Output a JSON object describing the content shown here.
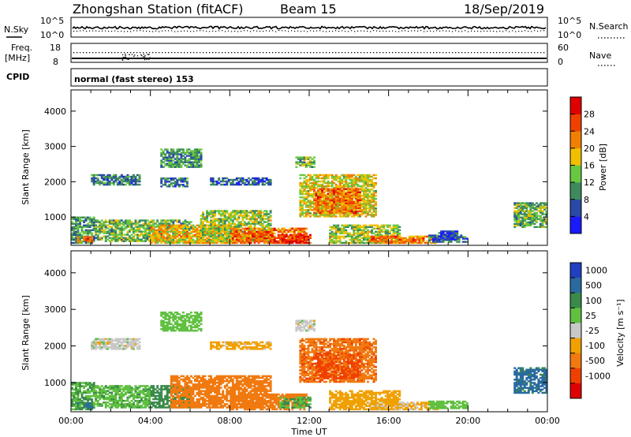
{
  "header": {
    "station": "Zhongshan Station (fitACF)",
    "beam": "Beam 15",
    "date": "18/Sep/2019"
  },
  "strip": {
    "nsky_label": "N.Sky",
    "nsky_top": "10^5",
    "nsky_bottom": "10^0",
    "nsearch_label": "N.Search",
    "nsearch_top": "10^5",
    "nsearch_bottom": "10^0",
    "freq_label": "Freq.",
    "freq_unit": "[MHz]",
    "freq_top": "18",
    "freq_bottom": "8",
    "nave_label": "Nave",
    "nave_top": "60",
    "nave_bottom": "0",
    "cpid_label": "CPID",
    "cpid_text": "normal (fast stereo) 153"
  },
  "axes": {
    "ylabel": "Slant Range [km]",
    "xlabel": "Time UT",
    "yticks": [
      "1000",
      "2000",
      "3000",
      "4000"
    ],
    "xticks": [
      "00:00",
      "04:00",
      "08:00",
      "12:00",
      "16:00",
      "20:00",
      "00:00"
    ]
  },
  "colorbars": {
    "power": {
      "label": "Power [dB]",
      "ticks": [
        "4",
        "8",
        "12",
        "16",
        "20",
        "24",
        "28"
      ],
      "colors": [
        "#1a1aff",
        "#2a4aa8",
        "#3e8a5c",
        "#68c840",
        "#f0c000",
        "#f08000",
        "#f04000",
        "#e00000"
      ]
    },
    "velocity": {
      "label": "Velocity [m s⁻¹]",
      "ticks": [
        "1000",
        "500",
        "100",
        "25",
        "-25",
        "-100",
        "-500",
        "-1000"
      ],
      "colors": [
        "#2040c0",
        "#2a6aa0",
        "#3a8a4a",
        "#60c040",
        "#c8c8c8",
        "#f0a000",
        "#f07a10",
        "#f04000",
        "#e00000"
      ]
    }
  },
  "chart_data": [
    {
      "type": "heatmap",
      "title": "Power",
      "quantity": "Power [dB]",
      "xlabel": "Time UT",
      "ylabel": "Slant Range [km]",
      "xlim": [
        0,
        24
      ],
      "ylim": [
        200,
        4600
      ],
      "color_range": [
        0,
        30
      ],
      "blobs": [
        {
          "t0": 0.0,
          "t1": 1.2,
          "r0": 250,
          "r1": 1000,
          "value": 10
        },
        {
          "t0": 0.3,
          "t1": 1.0,
          "r0": 280,
          "r1": 450,
          "value": 24
        },
        {
          "t0": 1.2,
          "t1": 6.0,
          "r0": 300,
          "r1": 900,
          "value": 12
        },
        {
          "t0": 4.0,
          "t1": 8.0,
          "r0": 250,
          "r1": 750,
          "value": 18
        },
        {
          "t0": 6.5,
          "t1": 10.0,
          "r0": 300,
          "r1": 1200,
          "value": 14
        },
        {
          "t0": 8.0,
          "t1": 11.8,
          "r0": 250,
          "r1": 700,
          "value": 22
        },
        {
          "t0": 10.0,
          "t1": 12.0,
          "r0": 250,
          "r1": 500,
          "value": 26
        },
        {
          "t0": 11.5,
          "t1": 15.3,
          "r0": 1000,
          "r1": 2200,
          "value": 16
        },
        {
          "t0": 12.2,
          "t1": 14.5,
          "r0": 1100,
          "r1": 1800,
          "value": 22
        },
        {
          "t0": 13.0,
          "t1": 16.5,
          "r0": 250,
          "r1": 750,
          "value": 14
        },
        {
          "t0": 15.0,
          "t1": 18.5,
          "r0": 250,
          "r1": 450,
          "value": 22
        },
        {
          "t0": 18.0,
          "t1": 20.0,
          "r0": 280,
          "r1": 500,
          "value": 8
        },
        {
          "t0": 18.5,
          "t1": 19.5,
          "r0": 350,
          "r1": 600,
          "value": 4
        },
        {
          "t0": 22.3,
          "t1": 24.0,
          "r0": 700,
          "r1": 1400,
          "value": 12
        },
        {
          "t0": 1.0,
          "t1": 3.5,
          "r0": 1900,
          "r1": 2200,
          "value": 8
        },
        {
          "t0": 4.5,
          "t1": 5.8,
          "r0": 1850,
          "r1": 2100,
          "value": 8
        },
        {
          "t0": 7.0,
          "t1": 10.0,
          "r0": 1900,
          "r1": 2100,
          "value": 6
        },
        {
          "t0": 11.3,
          "t1": 12.2,
          "r0": 2400,
          "r1": 2700,
          "value": 12
        },
        {
          "t0": 4.5,
          "t1": 6.5,
          "r0": 2400,
          "r1": 2900,
          "value": 10
        }
      ]
    },
    {
      "type": "heatmap",
      "title": "Velocity",
      "quantity": "Velocity [m s⁻¹]",
      "xlabel": "Time UT",
      "ylabel": "Slant Range [km]",
      "xlim": [
        0,
        24
      ],
      "ylim": [
        200,
        4600
      ],
      "color_levels": [
        1000,
        500,
        100,
        25,
        -25,
        -100,
        -500,
        -1000
      ],
      "blobs": [
        {
          "t0": 0.0,
          "t1": 1.2,
          "r0": 250,
          "r1": 1000,
          "value": 100
        },
        {
          "t0": 0.3,
          "t1": 1.0,
          "r0": 280,
          "r1": 450,
          "value": 600
        },
        {
          "t0": 1.2,
          "t1": 4.0,
          "r0": 300,
          "r1": 900,
          "value": 80
        },
        {
          "t0": 4.0,
          "t1": 6.0,
          "r0": 300,
          "r1": 900,
          "value": 300
        },
        {
          "t0": 5.0,
          "t1": 10.0,
          "r0": 300,
          "r1": 1200,
          "value": -300
        },
        {
          "t0": 8.0,
          "t1": 11.8,
          "r0": 250,
          "r1": 700,
          "value": -200
        },
        {
          "t0": 10.5,
          "t1": 12.0,
          "r0": 300,
          "r1": 600,
          "value": 100
        },
        {
          "t0": 11.5,
          "t1": 15.3,
          "r0": 1000,
          "r1": 2200,
          "value": -400
        },
        {
          "t0": 12.3,
          "t1": 14.5,
          "r0": 1100,
          "r1": 1800,
          "value": -600
        },
        {
          "t0": 13.0,
          "t1": 16.5,
          "r0": 250,
          "r1": 750,
          "value": -60
        },
        {
          "t0": 15.0,
          "t1": 18.5,
          "r0": 250,
          "r1": 450,
          "value": -40
        },
        {
          "t0": 18.0,
          "t1": 20.0,
          "r0": 280,
          "r1": 500,
          "value": 60
        },
        {
          "t0": 22.3,
          "t1": 24.0,
          "r0": 700,
          "r1": 1400,
          "value": 700
        },
        {
          "t0": 1.0,
          "t1": 3.5,
          "r0": 1900,
          "r1": 2200,
          "value": 0
        },
        {
          "t0": 7.0,
          "t1": 10.0,
          "r0": 1900,
          "r1": 2100,
          "value": -50
        },
        {
          "t0": 11.3,
          "t1": 12.2,
          "r0": 2400,
          "r1": 2700,
          "value": 0
        },
        {
          "t0": 4.5,
          "t1": 6.5,
          "r0": 2400,
          "r1": 2900,
          "value": 60
        }
      ]
    }
  ]
}
